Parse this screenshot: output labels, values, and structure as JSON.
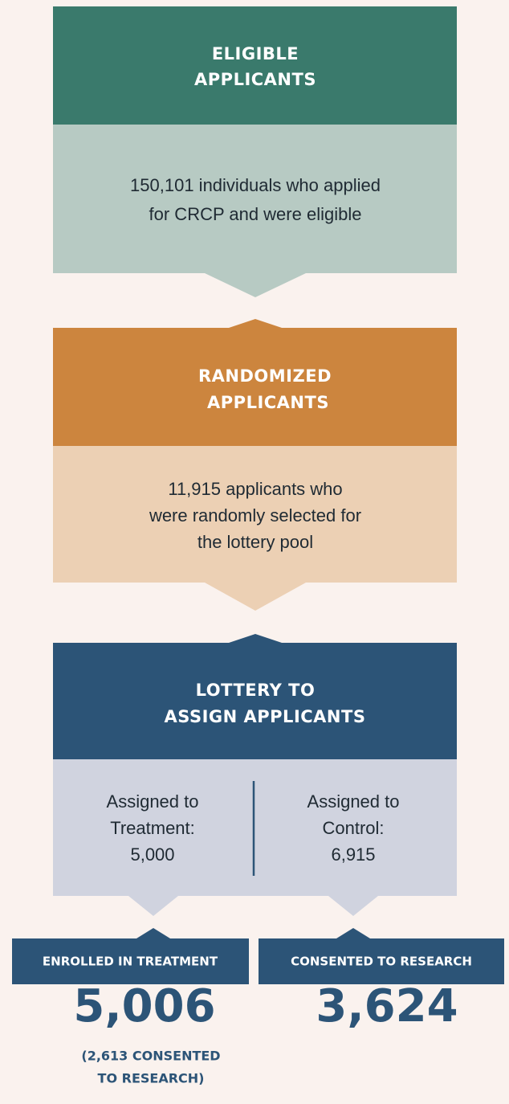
{
  "stages": [
    {
      "title_lines": [
        "ELIGIBLE",
        "APPLICANTS"
      ],
      "description_lines": [
        "150,101 individuals who applied",
        "for CRCP and were eligible"
      ]
    },
    {
      "title_lines": [
        "RANDOMIZED",
        "APPLICANTS"
      ],
      "description_lines": [
        "11,915 applicants who",
        "were randomly selected for",
        "the lottery pool"
      ]
    },
    {
      "title_lines": [
        "LOTTERY TO",
        "ASSIGN APPLICANTS"
      ],
      "columns": [
        {
          "lines": [
            "Assigned to",
            "Treatment:",
            "5,000"
          ]
        },
        {
          "lines": [
            "Assigned to",
            "Control:",
            "6,915"
          ]
        }
      ]
    }
  ],
  "outcomes": [
    {
      "label": "ENROLLED IN TREATMENT",
      "value": "5,006",
      "note_lines": [
        "(2,613 CONSENTED",
        "TO RESEARCH)"
      ]
    },
    {
      "label": "CONSENTED TO RESEARCH",
      "value": "3,624"
    }
  ]
}
